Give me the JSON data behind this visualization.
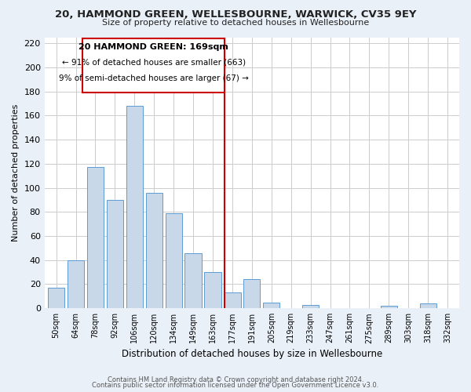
{
  "title_line1": "20, HAMMOND GREEN, WELLESBOURNE, WARWICK, CV35 9EY",
  "title_line2": "Size of property relative to detached houses in Wellesbourne",
  "xlabel": "Distribution of detached houses by size in Wellesbourne",
  "ylabel": "Number of detached properties",
  "bin_labels": [
    "50sqm",
    "64sqm",
    "78sqm",
    "92sqm",
    "106sqm",
    "120sqm",
    "134sqm",
    "149sqm",
    "163sqm",
    "177sqm",
    "191sqm",
    "205sqm",
    "219sqm",
    "233sqm",
    "247sqm",
    "261sqm",
    "275sqm",
    "289sqm",
    "303sqm",
    "318sqm",
    "332sqm"
  ],
  "bar_values": [
    17,
    40,
    117,
    90,
    168,
    96,
    79,
    46,
    30,
    13,
    24,
    5,
    0,
    3,
    0,
    0,
    0,
    2,
    0,
    4,
    0
  ],
  "bar_color": "#c8d8e8",
  "bar_edge_color": "#5b9bd5",
  "vline_x": 8.62,
  "vline_color": "#cc0000",
  "ylim": [
    0,
    225
  ],
  "yticks": [
    0,
    20,
    40,
    60,
    80,
    100,
    120,
    140,
    160,
    180,
    200,
    220
  ],
  "annotation_title": "20 HAMMOND GREEN: 169sqm",
  "annotation_line1": "← 91% of detached houses are smaller (663)",
  "annotation_line2": "9% of semi-detached houses are larger (67) →",
  "annotation_box_color": "#ffffff",
  "annotation_box_edge": "#cc0000",
  "footer_line1": "Contains HM Land Registry data © Crown copyright and database right 2024.",
  "footer_line2": "Contains public sector information licensed under the Open Government Licence v3.0.",
  "background_color": "#eaf0f8",
  "plot_bg_color": "#ffffff",
  "grid_color": "#cccccc"
}
